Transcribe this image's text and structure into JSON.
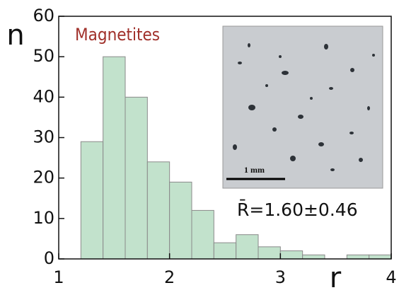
{
  "chart_data": {
    "type": "histogram",
    "xlabel": "r",
    "ylabel": "n",
    "annotations": [
      "Magnetites",
      "R̄=1.60±0.46"
    ],
    "inset_scale_label": "1 mm",
    "bins": [
      1.2,
      1.4,
      1.6,
      1.8,
      2.0,
      2.2,
      2.4,
      2.6,
      2.8,
      3.0,
      3.2,
      3.4,
      3.6,
      3.8,
      4.0
    ],
    "values": [
      29,
      50,
      40,
      24,
      19,
      12,
      4,
      6,
      3,
      2,
      1,
      0,
      1,
      1
    ],
    "color": "#c2e2cc",
    "edgecolor": "#8a8a8a",
    "xlim": [
      1,
      4
    ],
    "ylim": [
      0,
      60
    ],
    "xticks": [
      1,
      2,
      3,
      4
    ],
    "yticks": [
      0,
      10,
      20,
      30,
      40,
      50,
      60
    ]
  }
}
